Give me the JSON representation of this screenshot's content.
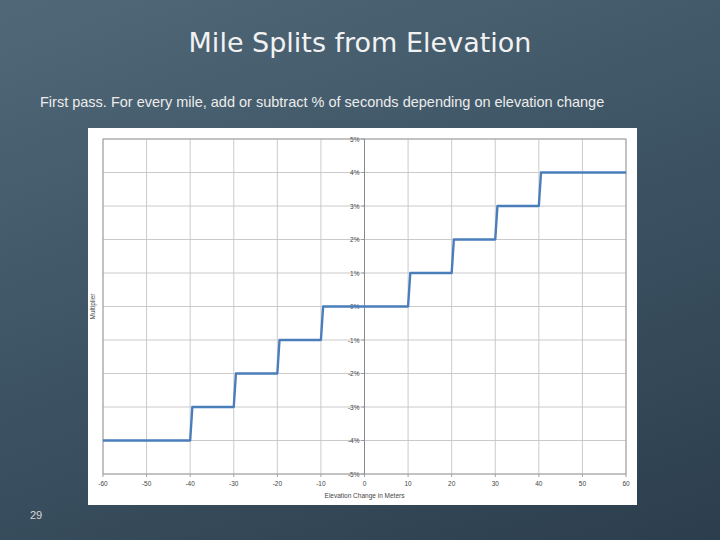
{
  "slide": {
    "title": "Mile Splits from Elevation",
    "subtitle": "First pass. For every mile, add or subtract % of seconds depending on elevation change",
    "page_number": "29"
  },
  "chart_data": {
    "type": "line",
    "x_label": "Elevation Change in Meters",
    "y_label": "Multiplier",
    "x": [
      -60,
      -40,
      -39.5,
      -30,
      -29.5,
      -20,
      -19.5,
      -10,
      -9.5,
      10,
      10.5,
      20,
      20.5,
      30,
      30.5,
      40,
      40.5,
      60
    ],
    "values": [
      -4,
      -4,
      -3,
      -3,
      -2,
      -2,
      -1,
      -1,
      0,
      0,
      1,
      1,
      2,
      2,
      3,
      3,
      4,
      4
    ],
    "color": "#4a7ebb",
    "line_style": "solid",
    "xlim": [
      -60,
      60
    ],
    "ylim": [
      -5,
      5
    ],
    "xticks": [
      -60,
      -50,
      -40,
      -30,
      -20,
      -10,
      0,
      10,
      20,
      30,
      40,
      50,
      60
    ],
    "yticks": [
      {
        "value": -5,
        "label": "-5%"
      },
      {
        "value": -4,
        "label": "-4%"
      },
      {
        "value": -3,
        "label": "-3%"
      },
      {
        "value": -2,
        "label": "-2%"
      },
      {
        "value": -1,
        "label": "-1%"
      },
      {
        "value": 0,
        "label": "0%"
      },
      {
        "value": 1,
        "label": "1%"
      },
      {
        "value": 2,
        "label": "2%"
      },
      {
        "value": 3,
        "label": "3%"
      },
      {
        "value": 4,
        "label": "4%"
      },
      {
        "value": 5,
        "label": "5%"
      }
    ],
    "grid": true
  }
}
